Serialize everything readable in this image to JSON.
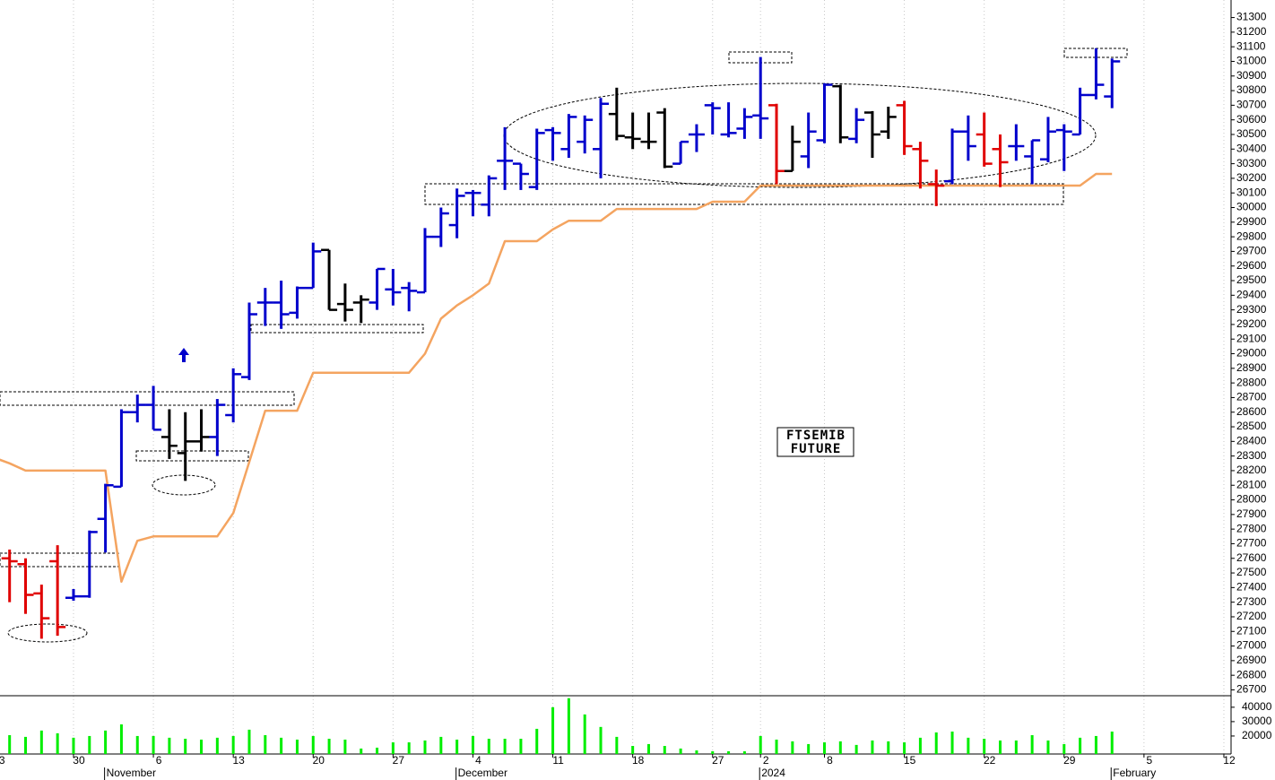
{
  "chart_data": {
    "type": "ohlc",
    "annotations": [
      "FTSEMIB",
      "FUTURE"
    ],
    "x": [
      0,
      1,
      2,
      3,
      4,
      5,
      6,
      7,
      8,
      9,
      10,
      11,
      12,
      13,
      14,
      15,
      16,
      17,
      18,
      19,
      20,
      21,
      22,
      23,
      24,
      25,
      26,
      27,
      28,
      29,
      30,
      31,
      32,
      33,
      34,
      35,
      36,
      37,
      38,
      39,
      40,
      41,
      42,
      43,
      44,
      45,
      46,
      47,
      48,
      49,
      50,
      51,
      52,
      53,
      54,
      55,
      56,
      57,
      58,
      59,
      60,
      61,
      62,
      63,
      64,
      65,
      66,
      67,
      68,
      69,
      70
    ],
    "open": [
      null,
      27600,
      27560,
      27360,
      27580,
      27330,
      27340,
      27870,
      28090,
      28600,
      28650,
      28430,
      28320,
      28400,
      28430,
      28580,
      28840,
      29350,
      29350,
      29280,
      29450,
      29710,
      29340,
      29350,
      29350,
      29440,
      29450,
      29420,
      29800,
      29880,
      30100,
      30020,
      30320,
      30300,
      30140,
      30530,
      30400,
      30450,
      30400,
      30640,
      30480,
      30450,
      30650,
      30300,
      30500,
      30700,
      30500,
      30540,
      30630,
      30700,
      30250,
      30350,
      30460,
      30830,
      30470,
      30650,
      30520,
      30700,
      30400,
      30160,
      30180,
      30520,
      30500,
      30400,
      30420,
      30350,
      30330,
      30530,
      30500,
      30770,
      30760
    ],
    "high": [
      null,
      27660,
      27600,
      27420,
      27690,
      27390,
      27790,
      28110,
      28620,
      28720,
      28780,
      28620,
      28600,
      28620,
      28690,
      28900,
      29350,
      29450,
      29500,
      29460,
      29760,
      29710,
      29480,
      29400,
      29580,
      29580,
      29490,
      29860,
      30000,
      30130,
      30120,
      30220,
      30550,
      30300,
      30540,
      30550,
      30640,
      30630,
      30750,
      30820,
      30650,
      30650,
      30680,
      30450,
      30570,
      30720,
      30720,
      30680,
      31030,
      30710,
      30560,
      30650,
      30850,
      30840,
      30680,
      30660,
      30690,
      30730,
      30450,
      30260,
      30540,
      30630,
      30650,
      30500,
      30570,
      30460,
      30620,
      30570,
      30820,
      31090,
      31020
    ],
    "low": [
      null,
      27300,
      27220,
      27050,
      27070,
      27310,
      27330,
      27640,
      28090,
      28530,
      28480,
      28280,
      28130,
      28330,
      28300,
      28530,
      28820,
      29190,
      29170,
      29240,
      29450,
      29300,
      29220,
      29210,
      29300,
      29330,
      29290,
      29420,
      29730,
      29790,
      29940,
      29940,
      30120,
      30120,
      30120,
      30320,
      30340,
      30370,
      30200,
      30460,
      30400,
      30400,
      30270,
      30300,
      30380,
      30500,
      30480,
      30470,
      30470,
      30160,
      30250,
      30270,
      30440,
      30440,
      30440,
      30340,
      30470,
      30360,
      30130,
      30010,
      30160,
      30320,
      30280,
      30140,
      30320,
      30160,
      30310,
      30250,
      30500,
      30740,
      30680
    ],
    "close": [
      null,
      27580,
      27350,
      27190,
      27130,
      27340,
      27780,
      28100,
      28600,
      28650,
      28480,
      28370,
      28400,
      28430,
      28650,
      28860,
      29270,
      29350,
      29270,
      29450,
      29700,
      29300,
      29300,
      29370,
      29580,
      29420,
      29430,
      29800,
      29960,
      30080,
      30100,
      30200,
      30320,
      30230,
      30510,
      30510,
      30620,
      30600,
      30710,
      30490,
      30470,
      30450,
      30280,
      30450,
      30500,
      30680,
      30510,
      30620,
      30610,
      30250,
      30450,
      30520,
      30840,
      30480,
      30600,
      30500,
      30620,
      30420,
      30320,
      30150,
      30520,
      30420,
      30300,
      30310,
      30420,
      30460,
      30520,
      30520,
      30770,
      30840,
      31000
    ],
    "bar_colors": [
      null,
      "#e00000",
      "#e00000",
      "#e00000",
      "#e00000",
      "#0000cc",
      "#0000cc",
      "#0000cc",
      "#0000cc",
      "#0000cc",
      "#0000cc",
      "#000000",
      "#000000",
      "#000000",
      "#0000cc",
      "#0000cc",
      "#0000cc",
      "#0000cc",
      "#0000cc",
      "#0000cc",
      "#0000cc",
      "#000000",
      "#000000",
      "#000000",
      "#0000cc",
      "#0000cc",
      "#0000cc",
      "#0000cc",
      "#0000cc",
      "#0000cc",
      "#0000cc",
      "#0000cc",
      "#0000cc",
      "#0000cc",
      "#0000cc",
      "#0000cc",
      "#0000cc",
      "#0000cc",
      "#0000cc",
      "#000000",
      "#000000",
      "#000000",
      "#000000",
      "#0000cc",
      "#0000cc",
      "#0000cc",
      "#0000cc",
      "#0000cc",
      "#0000cc",
      "#e00000",
      "#000000",
      "#0000cc",
      "#0000cc",
      "#000000",
      "#0000cc",
      "#000000",
      "#000000",
      "#e00000",
      "#e00000",
      "#e00000",
      "#0000cc",
      "#0000cc",
      "#e00000",
      "#e00000",
      "#0000cc",
      "#0000cc",
      "#0000cc",
      "#0000cc",
      "#0000cc",
      "#0000cc",
      "#0000cc"
    ],
    "line": {
      "color": "#f4a460",
      "values": [
        28290,
        28250,
        28200,
        28200,
        28200,
        28200,
        28200,
        28200,
        27440,
        27720,
        27750,
        27750,
        27750,
        27750,
        27750,
        27910,
        28260,
        28610,
        28610,
        28610,
        28870,
        28870,
        28870,
        28870,
        28870,
        28870,
        28870,
        29000,
        29240,
        29330,
        29400,
        29480,
        29770,
        29770,
        29770,
        29850,
        29910,
        29910,
        29910,
        29990,
        29990,
        29990,
        29990,
        29990,
        29990,
        30040,
        30040,
        30040,
        30150,
        30150,
        30150,
        30150,
        30150,
        30150,
        30150,
        30150,
        30150,
        30150,
        30150,
        30150,
        30150,
        30150,
        30150,
        30150,
        30150,
        30150,
        30150,
        30150,
        30150,
        30230,
        30230
      ]
    },
    "xlim": [
      0.4,
      77.45
    ],
    "ylim": [
      26660,
      31420
    ],
    "yticks": [
      26700,
      26800,
      26900,
      27000,
      27100,
      27200,
      27300,
      27400,
      27500,
      27600,
      27700,
      27800,
      27900,
      28000,
      28100,
      28200,
      28300,
      28400,
      28500,
      28600,
      28700,
      28800,
      28900,
      29000,
      29100,
      29200,
      29300,
      29400,
      29500,
      29600,
      29700,
      29800,
      29900,
      30000,
      30100,
      30200,
      30300,
      30400,
      30500,
      30600,
      30700,
      30800,
      30900,
      31000,
      31100,
      31200,
      31300
    ],
    "xticks": [
      {
        "value": 0,
        "label": "23"
      },
      {
        "value": 5,
        "label": "30"
      },
      {
        "value": 10,
        "label": "6"
      },
      {
        "value": 15,
        "label": "13"
      },
      {
        "value": 20,
        "label": "20"
      },
      {
        "value": 25,
        "label": "27"
      },
      {
        "value": 30,
        "label": "4"
      },
      {
        "value": 35,
        "label": "11"
      },
      {
        "value": 40,
        "label": "18"
      },
      {
        "value": 45,
        "label": "27"
      },
      {
        "value": 48,
        "label": "2"
      },
      {
        "value": 52,
        "label": "8"
      },
      {
        "value": 57,
        "label": "15"
      },
      {
        "value": 62,
        "label": "22"
      },
      {
        "value": 67,
        "label": "29"
      },
      {
        "value": 72,
        "label": "5"
      },
      {
        "value": 77,
        "label": "12"
      }
    ],
    "month_ticks": [
      {
        "value": 7,
        "label": "November"
      },
      {
        "value": 29,
        "label": "December"
      },
      {
        "value": 48,
        "label": "2024"
      },
      {
        "value": 70,
        "label": "February"
      }
    ],
    "grid": true,
    "volume": {
      "type": "bar",
      "color": "#00ee00",
      "values": [
        null,
        20600,
        19400,
        23800,
        21900,
        18800,
        20000,
        23800,
        28100,
        20000,
        20000,
        18800,
        18100,
        17500,
        18800,
        20000,
        24400,
        20600,
        18800,
        17500,
        20000,
        18100,
        17500,
        11300,
        11900,
        15600,
        15600,
        16900,
        19400,
        17500,
        20000,
        18100,
        18100,
        18100,
        25000,
        40000,
        46300,
        35000,
        26300,
        19400,
        13100,
        14400,
        13100,
        11300,
        10000,
        9400,
        9400,
        9400,
        20000,
        17500,
        16300,
        14400,
        15600,
        16300,
        13800,
        16900,
        16300,
        15600,
        18800,
        22500,
        23100,
        18800,
        18100,
        16900,
        16900,
        20600,
        16900,
        14400,
        18800,
        20000,
        23100
      ],
      "ylim": [
        7500,
        48000
      ],
      "yticks": [
        20000,
        30000,
        40000
      ]
    }
  }
}
